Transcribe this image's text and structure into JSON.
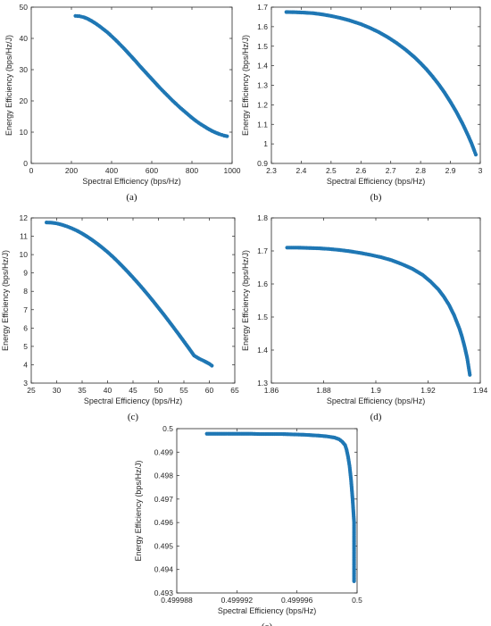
{
  "figure": {
    "marker_color": "#1f77b4",
    "axis_color": "#262626"
  },
  "chart_data": [
    {
      "type": "scatter",
      "caption": "(a)",
      "xlabel": "Spectral Efficiency (bps/Hz)",
      "ylabel": "Energy Efficiency (bps/Hz/J)",
      "xlim": [
        0,
        1000
      ],
      "ylim": [
        0,
        50
      ],
      "xticks": [
        "0",
        "200",
        "400",
        "600",
        "800",
        "1000"
      ],
      "yticks": [
        "0",
        "10",
        "20",
        "30",
        "40",
        "50"
      ],
      "x": [
        220,
        240,
        260,
        280,
        300,
        320,
        340,
        360,
        380,
        400,
        420,
        440,
        460,
        480,
        500,
        520,
        540,
        560,
        580,
        600,
        620,
        640,
        660,
        680,
        700,
        720,
        740,
        760,
        780,
        800,
        820,
        840,
        860,
        880,
        900,
        920,
        940,
        960,
        975
      ],
      "y": [
        47.2,
        47.1,
        46.8,
        46.3,
        45.6,
        44.8,
        43.9,
        42.9,
        41.9,
        40.7,
        39.5,
        38.2,
        36.9,
        35.5,
        34.1,
        32.7,
        31.2,
        29.8,
        28.4,
        27.0,
        25.6,
        24.2,
        22.9,
        21.6,
        20.3,
        19.1,
        17.9,
        16.8,
        15.7,
        14.6,
        13.6,
        12.7,
        11.9,
        11.1,
        10.4,
        9.8,
        9.3,
        8.9,
        8.7
      ]
    },
    {
      "type": "scatter",
      "caption": "(b)",
      "xlabel": "Spectral Efficiency (bps/Hz)",
      "ylabel": "Energy Efficiency (bps/Hz/J)",
      "xlim": [
        2.3,
        3.0
      ],
      "ylim": [
        0.9,
        1.7
      ],
      "xticks": [
        "2.3",
        "2.4",
        "2.5",
        "2.6",
        "2.7",
        "2.8",
        "2.9",
        "3"
      ],
      "yticks": [
        "0.9",
        "1",
        "1.1",
        "1.2",
        "1.3",
        "1.4",
        "1.5",
        "1.6",
        "1.7"
      ],
      "x": [
        2.35,
        2.38,
        2.41,
        2.44,
        2.47,
        2.5,
        2.53,
        2.56,
        2.6,
        2.63,
        2.66,
        2.69,
        2.72,
        2.75,
        2.78,
        2.8,
        2.82,
        2.84,
        2.86,
        2.88,
        2.9,
        2.92,
        2.94,
        2.95,
        2.96,
        2.97,
        2.98,
        2.985
      ],
      "y": [
        1.675,
        1.674,
        1.672,
        1.669,
        1.663,
        1.655,
        1.645,
        1.633,
        1.613,
        1.594,
        1.572,
        1.546,
        1.516,
        1.482,
        1.443,
        1.413,
        1.381,
        1.345,
        1.306,
        1.263,
        1.215,
        1.163,
        1.105,
        1.073,
        1.04,
        1.005,
        0.965,
        0.945
      ]
    },
    {
      "type": "scatter",
      "caption": "(c)",
      "xlabel": "Spectral Efficiency (bps/Hz)",
      "ylabel": "Energy Efficiency (bps/Hz/J)",
      "xlim": [
        25,
        65
      ],
      "ylim": [
        3,
        12
      ],
      "xticks": [
        "25",
        "30",
        "35",
        "40",
        "45",
        "50",
        "55",
        "60",
        "65"
      ],
      "yticks": [
        "3",
        "4",
        "5",
        "6",
        "7",
        "8",
        "9",
        "10",
        "11",
        "12"
      ],
      "x": [
        28,
        29,
        30,
        31,
        32,
        33,
        34,
        35,
        36,
        37,
        38,
        39,
        40,
        41,
        42,
        43,
        44,
        45,
        46,
        47,
        48,
        49,
        50,
        51,
        52,
        53,
        54,
        55,
        56,
        57,
        58,
        59,
        60,
        60.5
      ],
      "y": [
        11.75,
        11.74,
        11.7,
        11.63,
        11.54,
        11.43,
        11.3,
        11.15,
        10.98,
        10.79,
        10.59,
        10.37,
        10.14,
        9.89,
        9.62,
        9.34,
        9.05,
        8.75,
        8.44,
        8.12,
        7.79,
        7.45,
        7.1,
        6.75,
        6.39,
        6.02,
        5.65,
        5.27,
        4.89,
        4.5,
        4.33,
        4.2,
        4.05,
        3.95
      ]
    },
    {
      "type": "scatter",
      "caption": "(d)",
      "xlabel": "Spectral Efficiency (bps/Hz)",
      "ylabel": "Energy Efficiency (bps/Hz/J)",
      "xlim": [
        1.86,
        1.94
      ],
      "ylim": [
        1.3,
        1.8
      ],
      "xticks": [
        "1.86",
        "1.88",
        "1.9",
        "1.92",
        "1.94"
      ],
      "yticks": [
        "1.3",
        "1.4",
        "1.5",
        "1.6",
        "1.7",
        "1.8"
      ],
      "x": [
        1.866,
        1.87,
        1.874,
        1.878,
        1.882,
        1.886,
        1.89,
        1.894,
        1.898,
        1.902,
        1.906,
        1.91,
        1.914,
        1.918,
        1.921,
        1.924,
        1.926,
        1.928,
        1.93,
        1.932,
        1.933,
        1.934,
        1.935,
        1.9355,
        1.936
      ],
      "y": [
        1.71,
        1.71,
        1.709,
        1.708,
        1.706,
        1.703,
        1.699,
        1.694,
        1.688,
        1.681,
        1.672,
        1.66,
        1.646,
        1.627,
        1.607,
        1.583,
        1.562,
        1.537,
        1.505,
        1.465,
        1.44,
        1.41,
        1.375,
        1.35,
        1.325
      ]
    },
    {
      "type": "scatter",
      "caption": "(e)",
      "xlabel": "Spectral Efficiency (bps/Hz)",
      "ylabel": "Energy Efficiency (bps/Hz/J)",
      "xlim": [
        0.499988,
        0.5
      ],
      "ylim": [
        0.493,
        0.5
      ],
      "xticks": [
        "0.499988",
        "0.499992",
        "0.499996",
        "0.5"
      ],
      "yticks": [
        "0.493",
        "0.494",
        "0.495",
        "0.496",
        "0.497",
        "0.498",
        "0.499",
        "0.5"
      ],
      "x": [
        0.49999,
        0.4999905,
        0.499991,
        0.4999915,
        0.499992,
        0.4999925,
        0.499993,
        0.4999935,
        0.499994,
        0.4999945,
        0.499995,
        0.4999955,
        0.499996,
        0.4999965,
        0.499997,
        0.4999975,
        0.499998,
        0.4999985,
        0.4999988,
        0.499999,
        0.4999992,
        0.4999993,
        0.4999994,
        0.4999995,
        0.4999996,
        0.4999997,
        0.4999998,
        0.4999998,
        0.4999998,
        0.4999998
      ],
      "y": [
        0.49978,
        0.49978,
        0.49978,
        0.49978,
        0.49978,
        0.49978,
        0.49978,
        0.49977,
        0.49977,
        0.49977,
        0.49977,
        0.49976,
        0.49975,
        0.49974,
        0.49972,
        0.4997,
        0.49967,
        0.49962,
        0.49955,
        0.49945,
        0.4993,
        0.4991,
        0.4988,
        0.4984,
        0.4978,
        0.497,
        0.496,
        0.4953,
        0.4945,
        0.4935
      ]
    }
  ]
}
